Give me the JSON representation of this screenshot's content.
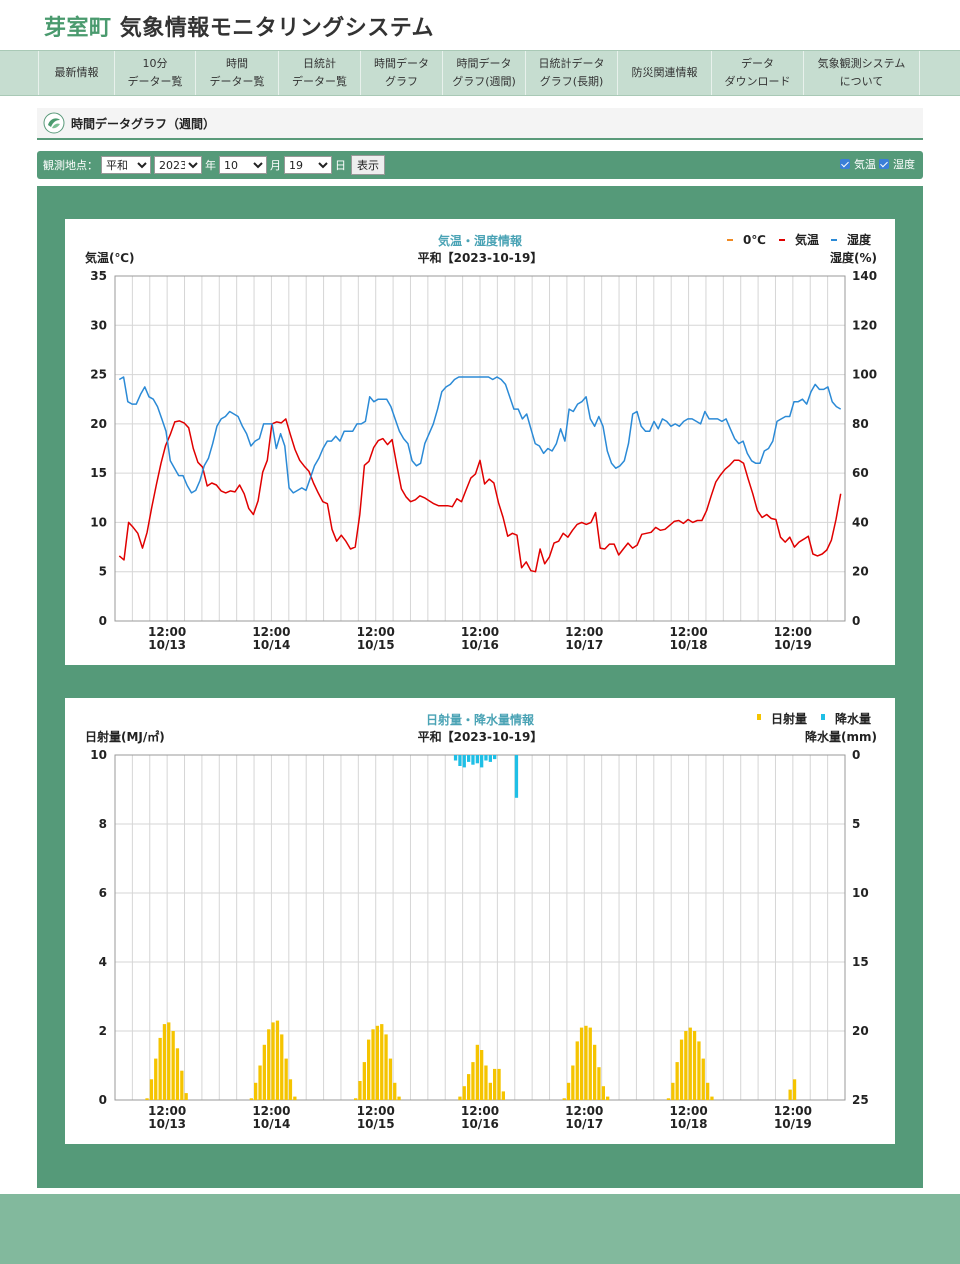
{
  "header": {
    "town": "芽室町",
    "system": "気象情報モニタリングシステム"
  },
  "nav": {
    "items": [
      {
        "label": "最新情報",
        "w": 77
      },
      {
        "label": "10分\nデーター覧",
        "w": 81
      },
      {
        "label": "時間\nデーター覧",
        "w": 83
      },
      {
        "label": "日統計\nデーター覧",
        "w": 82
      },
      {
        "label": "時間データ\nグラフ",
        "w": 82
      },
      {
        "label": "時間データ\nグラフ(週間)",
        "w": 83
      },
      {
        "label": "日統計データ\nグラフ(長期)",
        "w": 92
      },
      {
        "label": "防災関連情報",
        "w": 94
      },
      {
        "label": "データ\nダウンロード",
        "w": 92
      },
      {
        "label": "気象観測システム\nについて",
        "w": 116
      }
    ]
  },
  "page": {
    "title": "時間データグラフ（週間）"
  },
  "controls": {
    "station_label": "観測地点：",
    "station": "平和",
    "year": "2023",
    "year_unit": "年",
    "month": "10",
    "month_unit": "月",
    "day": "19",
    "day_unit": "日",
    "show_button": "表示",
    "check_temp": "気温",
    "check_humid": "湿度"
  },
  "chart_data": [
    {
      "type": "line",
      "title": "気温・湿度情報",
      "subtitle": "平和【2023-10-19】",
      "ylabel": "気温(℃)",
      "y2label": "湿度(%)",
      "ylim": [
        0,
        35
      ],
      "y2lim": [
        0,
        140
      ],
      "yticks": [
        0,
        5,
        10,
        15,
        20,
        25,
        30,
        35
      ],
      "y2ticks": [
        0,
        20,
        40,
        60,
        80,
        100,
        120,
        140
      ],
      "legend": [
        {
          "name": "0℃",
          "color": "#f08a24"
        },
        {
          "name": "気温",
          "color": "#e00000"
        },
        {
          "name": "湿度",
          "color": "#2b8ad6"
        }
      ],
      "legend_position": "top-right",
      "grid": true,
      "x_start": "2023-10-13 00:00",
      "x_step_hours": 2,
      "x_ticks": [
        {
          "t": "12:00",
          "d": "10/13"
        },
        {
          "t": "12:00",
          "d": "10/14"
        },
        {
          "t": "12:00",
          "d": "10/15"
        },
        {
          "t": "12:00",
          "d": "10/16"
        },
        {
          "t": "12:00",
          "d": "10/17"
        },
        {
          "t": "12:00",
          "d": "10/18"
        },
        {
          "t": "12:00",
          "d": "10/19"
        }
      ],
      "series": [
        {
          "name": "気温",
          "color": "#e00000",
          "axis": "left",
          "values": [
            6.6,
            6.2,
            10.0,
            9.5,
            8.9,
            7.4,
            9.0,
            11.5,
            13.8,
            16.0,
            17.8,
            18.9,
            20.2,
            20.3,
            20.1,
            19.6,
            17.5,
            16.1,
            15.6,
            13.7,
            14.0,
            13.8,
            13.2,
            13.0,
            13.2,
            13.1,
            13.8,
            12.9,
            11.4,
            10.8,
            12.2,
            15.1,
            16.3,
            20.0,
            20.2,
            20.1,
            20.5,
            18.9,
            17.4,
            16.3,
            15.7,
            15.2,
            14.0,
            13.0,
            12.1,
            11.9,
            9.3,
            8.1,
            8.7,
            8.1,
            7.3,
            7.5,
            10.8,
            15.8,
            16.2,
            17.6,
            18.3,
            18.5,
            17.9,
            18.4,
            15.8,
            13.4,
            12.6,
            12.1,
            12.3,
            12.7,
            12.5,
            12.2,
            11.9,
            11.7,
            11.7,
            11.7,
            11.6,
            12.4,
            12.1,
            13.3,
            14.5,
            14.9,
            16.3,
            13.9,
            14.4,
            14.0,
            12.0,
            10.5,
            8.6,
            8.9,
            8.7,
            5.4,
            6.0,
            5.1,
            5.0,
            7.3,
            5.8,
            6.5,
            7.9,
            8.1,
            8.9,
            8.5,
            9.2,
            9.8,
            10.0,
            9.8,
            10.0,
            11.0,
            7.4,
            7.3,
            7.8,
            7.8,
            6.7,
            7.3,
            7.9,
            7.4,
            7.7,
            8.8,
            8.9,
            9.0,
            9.5,
            9.2,
            9.3,
            9.7,
            10.1,
            10.2,
            9.9,
            10.3,
            10.0,
            10.2,
            10.2,
            11.2,
            12.7,
            14.1,
            14.8,
            15.4,
            15.8,
            16.3,
            16.3,
            16.0,
            14.4,
            12.9,
            11.2,
            10.5,
            10.8,
            10.4,
            10.3,
            8.5,
            8.0,
            8.5,
            7.5,
            8.0,
            8.3,
            8.6,
            6.8,
            6.6,
            6.8,
            7.2,
            8.2,
            10.3,
            12.9
          ]
        },
        {
          "name": "湿度",
          "color": "#2b8ad6",
          "axis": "right",
          "values": [
            98,
            99,
            89,
            88,
            88,
            92,
            95,
            91,
            90,
            87,
            82,
            77,
            65,
            62,
            59,
            59,
            55,
            52,
            53,
            57,
            63,
            66,
            72,
            79,
            82,
            83,
            85,
            84,
            83,
            79,
            76,
            71,
            73,
            74,
            80,
            80,
            80,
            70,
            76,
            71,
            54,
            52,
            53,
            54,
            53,
            58,
            63,
            66,
            70,
            73,
            73,
            75,
            73,
            77,
            77,
            77,
            80,
            80,
            81,
            91,
            89,
            90,
            90,
            90,
            87,
            82,
            77,
            74,
            72,
            65,
            63,
            64,
            72,
            76,
            80,
            86,
            93,
            95,
            96,
            98,
            99,
            99,
            99,
            99,
            99,
            99,
            99,
            99,
            98,
            99,
            98,
            96,
            91,
            86,
            86,
            82,
            84,
            78,
            72,
            71,
            68,
            70,
            69,
            72,
            78,
            73,
            86,
            85,
            88,
            89,
            91,
            82,
            79,
            83,
            79,
            69,
            64,
            62,
            63,
            65,
            72,
            84,
            85,
            79,
            77,
            77,
            81,
            78,
            82,
            81,
            79,
            80,
            79,
            81,
            82,
            82,
            81,
            80,
            85,
            82,
            82,
            82,
            81,
            82,
            78,
            74,
            72,
            73,
            68,
            65,
            64,
            64,
            69,
            70,
            73,
            81,
            82,
            83,
            83,
            89,
            89,
            90,
            88,
            93,
            96,
            94,
            94,
            95,
            89,
            87,
            86
          ]
        },
        {
          "name": "0℃",
          "color": "#f08a24",
          "axis": "left",
          "values": []
        }
      ]
    },
    {
      "type": "bar",
      "title": "日射量・降水量情報",
      "subtitle": "平和【2023-10-19】",
      "ylabel": "日射量(MJ/㎡)",
      "y2label": "降水量(mm)",
      "ylim": [
        0,
        10
      ],
      "y2lim": [
        0,
        25
      ],
      "yticks": [
        0,
        2,
        4,
        6,
        8,
        10
      ],
      "y2ticks": [
        0,
        5,
        10,
        15,
        20,
        25
      ],
      "y2_inverted": true,
      "legend": [
        {
          "name": "日射量",
          "color": "#f5c400"
        },
        {
          "name": "降水量",
          "color": "#1ebfe6"
        }
      ],
      "legend_position": "top-right",
      "grid": true,
      "x_start": "2023-10-13 00:00",
      "x_ticks": [
        {
          "t": "12:00",
          "d": "10/13"
        },
        {
          "t": "12:00",
          "d": "10/14"
        },
        {
          "t": "12:00",
          "d": "10/15"
        },
        {
          "t": "12:00",
          "d": "10/16"
        },
        {
          "t": "12:00",
          "d": "10/17"
        },
        {
          "t": "12:00",
          "d": "10/18"
        },
        {
          "t": "12:00",
          "d": "10/19"
        }
      ],
      "solar_days": [
        [
          0.05,
          0.6,
          1.2,
          1.8,
          2.2,
          2.25,
          2.0,
          1.5,
          0.85,
          0.2
        ],
        [
          0.05,
          0.5,
          1.0,
          1.6,
          2.05,
          2.25,
          2.3,
          1.9,
          1.2,
          0.6,
          0.1
        ],
        [
          0.05,
          0.55,
          1.1,
          1.75,
          2.05,
          2.15,
          2.2,
          1.9,
          1.2,
          0.5,
          0.1
        ],
        [
          0.1,
          0.4,
          0.75,
          1.1,
          1.6,
          1.45,
          1.0,
          0.5,
          0.9,
          0.9,
          0.25
        ],
        [
          0.05,
          0.5,
          1.0,
          1.7,
          2.1,
          2.15,
          2.1,
          1.6,
          0.95,
          0.4,
          0.1
        ],
        [
          0.05,
          0.5,
          1.1,
          1.75,
          2.0,
          2.1,
          2.0,
          1.7,
          1.2,
          0.5,
          0.1
        ],
        [
          0.3,
          0.6
        ]
      ],
      "rain_hours": [
        {
          "hour": 78,
          "mm": 0.4
        },
        {
          "hour": 79,
          "mm": 0.8
        },
        {
          "hour": 80,
          "mm": 0.9
        },
        {
          "hour": 81,
          "mm": 0.5
        },
        {
          "hour": 82,
          "mm": 0.7
        },
        {
          "hour": 83,
          "mm": 0.6
        },
        {
          "hour": 84,
          "mm": 0.9
        },
        {
          "hour": 85,
          "mm": 0.4
        },
        {
          "hour": 86,
          "mm": 0.5
        },
        {
          "hour": 87,
          "mm": 0.3
        },
        {
          "hour": 92,
          "mm": 3.1
        }
      ]
    }
  ]
}
